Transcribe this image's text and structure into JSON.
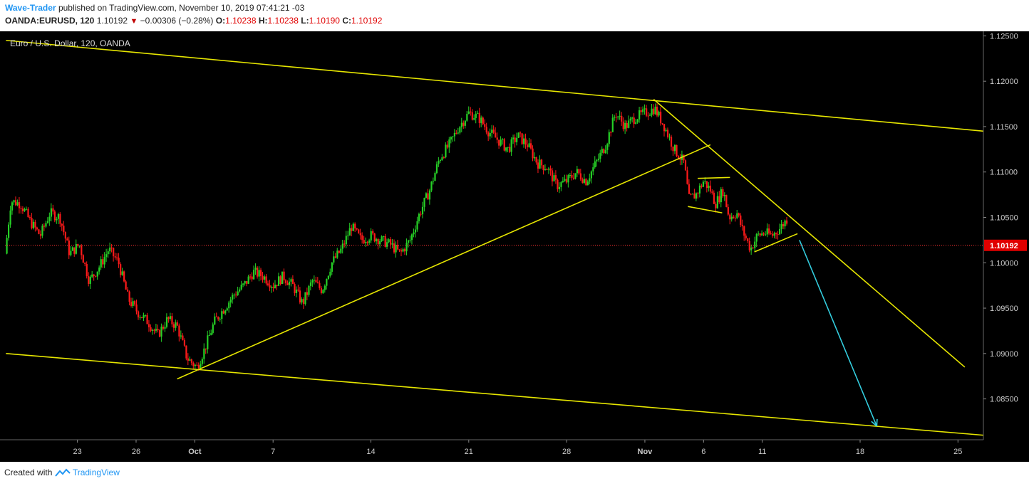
{
  "header": {
    "author": "Wave-Trader",
    "published_text": "published on TradingView.com, November 10, 2019 07:41:21 -03",
    "symbol_interval": "OANDA:EURUSD, 120",
    "last_price": "1.10192",
    "change": "−0.00306 (−0.28%)",
    "open_label": "O:",
    "open_value": "1.10238",
    "high_label": "H:",
    "high_value": "1.10238",
    "low_label": "L:",
    "low_value": "1.10190",
    "close_label": "C:",
    "close_value": "1.10192"
  },
  "chart_data": {
    "type": "candlestick",
    "title": "Euro / U.S. Dollar, 120, OANDA",
    "ylim": [
      1.0805,
      1.1255
    ],
    "y_ticks": [
      "1.12500",
      "1.12000",
      "1.11500",
      "1.11000",
      "1.10500",
      "1.10000",
      "1.09500",
      "1.09000",
      "1.08500"
    ],
    "x_range": [
      0,
      100
    ],
    "x_ticks": [
      {
        "label": "23",
        "x": 7.4
      },
      {
        "label": "26",
        "x": 13.4
      },
      {
        "label": "Oct",
        "x": 19.4
      },
      {
        "label": "7",
        "x": 27.4
      },
      {
        "label": "14",
        "x": 37.4
      },
      {
        "label": "21",
        "x": 47.4
      },
      {
        "label": "28",
        "x": 57.4
      },
      {
        "label": "Nov",
        "x": 65.4
      },
      {
        "label": "6",
        "x": 71.4
      },
      {
        "label": "11",
        "x": 77.4
      },
      {
        "label": "18",
        "x": 87.4
      },
      {
        "label": "25",
        "x": 97.4
      }
    ],
    "current_price": 1.10192,
    "current_price_label": "1.10192",
    "price_path": [
      [
        0,
        1.101
      ],
      [
        0.6,
        1.1068
      ],
      [
        1.6,
        1.1065
      ],
      [
        2.6,
        1.1045
      ],
      [
        3.6,
        1.103
      ],
      [
        4.6,
        1.1055
      ],
      [
        5.6,
        1.105
      ],
      [
        6.6,
        1.101
      ],
      [
        7.6,
        1.102
      ],
      [
        8.6,
        1.098
      ],
      [
        9.6,
        1.0995
      ],
      [
        10.6,
        1.1015
      ],
      [
        11.6,
        1.1
      ],
      [
        12.6,
        1.096
      ],
      [
        13.6,
        1.0945
      ],
      [
        14.6,
        1.0935
      ],
      [
        15.6,
        1.092
      ],
      [
        16.6,
        1.0938
      ],
      [
        17.6,
        1.093
      ],
      [
        18.6,
        1.0895
      ],
      [
        19.6,
        1.0885
      ],
      [
        20.4,
        1.0905
      ],
      [
        21.4,
        1.0935
      ],
      [
        22.4,
        1.095
      ],
      [
        23.4,
        1.0965
      ],
      [
        24.4,
        1.0975
      ],
      [
        25.4,
        1.099
      ],
      [
        26.4,
        1.0985
      ],
      [
        27.4,
        1.0975
      ],
      [
        28.4,
        1.0985
      ],
      [
        29.4,
        1.0975
      ],
      [
        30.4,
        1.0955
      ],
      [
        31.4,
        1.098
      ],
      [
        32.4,
        1.097
      ],
      [
        33.4,
        1.1
      ],
      [
        34.4,
        1.1015
      ],
      [
        35.4,
        1.104
      ],
      [
        36.4,
        1.1025
      ],
      [
        37.4,
        1.103
      ],
      [
        38.4,
        1.1025
      ],
      [
        39.4,
        1.102
      ],
      [
        40.4,
        1.101
      ],
      [
        41.4,
        1.1025
      ],
      [
        42.4,
        1.1055
      ],
      [
        43.4,
        1.108
      ],
      [
        44.4,
        1.1115
      ],
      [
        45.4,
        1.113
      ],
      [
        46.4,
        1.115
      ],
      [
        47.4,
        1.1165
      ],
      [
        48.4,
        1.116
      ],
      [
        49.4,
        1.1145
      ],
      [
        50.4,
        1.1135
      ],
      [
        51.4,
        1.1125
      ],
      [
        52.4,
        1.114
      ],
      [
        53.4,
        1.113
      ],
      [
        54.4,
        1.111
      ],
      [
        55.4,
        1.1105
      ],
      [
        56.4,
        1.1085
      ],
      [
        57.4,
        1.109
      ],
      [
        58.4,
        1.11
      ],
      [
        59.4,
        1.109
      ],
      [
        60.4,
        1.111
      ],
      [
        61.4,
        1.113
      ],
      [
        62.4,
        1.1165
      ],
      [
        63.4,
        1.115
      ],
      [
        64.4,
        1.116
      ],
      [
        65.4,
        1.1165
      ],
      [
        66.4,
        1.117
      ],
      [
        67.4,
        1.115
      ],
      [
        68.4,
        1.1125
      ],
      [
        69.4,
        1.111
      ],
      [
        69.9,
        1.107
      ],
      [
        70.6,
        1.1075
      ],
      [
        71.4,
        1.109
      ],
      [
        72.1,
        1.108
      ],
      [
        72.6,
        1.1065
      ],
      [
        73.4,
        1.108
      ],
      [
        74.0,
        1.105
      ],
      [
        74.8,
        1.1055
      ],
      [
        75.4,
        1.1035
      ],
      [
        76.2,
        1.1015
      ],
      [
        76.9,
        1.103
      ],
      [
        77.6,
        1.1033
      ],
      [
        78.4,
        1.103
      ],
      [
        79.2,
        1.1038
      ],
      [
        79.9,
        1.1048
      ]
    ],
    "annotations": {
      "lines": [
        {
          "color": "#e6e600",
          "points": [
            [
              0.1,
              1.1245
            ],
            [
              100,
              1.1145
            ]
          ]
        },
        {
          "color": "#e6e600",
          "points": [
            [
              0.1,
              1.09
            ],
            [
              100,
              1.081
            ]
          ]
        },
        {
          "color": "#e6e600",
          "points": [
            [
              17.6,
              1.0872
            ],
            [
              72.1,
              1.113
            ]
          ]
        },
        {
          "color": "#e6e600",
          "points": [
            [
              66.3,
              1.118
            ],
            [
              98.1,
              1.0885
            ]
          ]
        },
        {
          "color": "#e6e600",
          "points": [
            [
              69.8,
              1.1062
            ],
            [
              73.3,
              1.1055
            ]
          ]
        },
        {
          "color": "#e6e600",
          "points": [
            [
              70.8,
              1.1093
            ],
            [
              74.1,
              1.1094
            ]
          ]
        },
        {
          "color": "#e6e600",
          "points": [
            [
              76.6,
              1.1012
            ],
            [
              81.0,
              1.1032
            ]
          ]
        }
      ],
      "arrow": {
        "color": "#33ccdd",
        "from": [
          81.2,
          1.1025
        ],
        "to": [
          89.1,
          1.082
        ]
      }
    }
  },
  "footer": {
    "created_with": "Created with",
    "brand": "TradingView"
  },
  "colors": {
    "background": "#000000",
    "up": "#26d126",
    "down": "#ff1a1a",
    "trendline": "#e6e600",
    "arrow": "#33ccdd",
    "axis_text": "#cccccc",
    "price_label_bg": "#e00000"
  }
}
